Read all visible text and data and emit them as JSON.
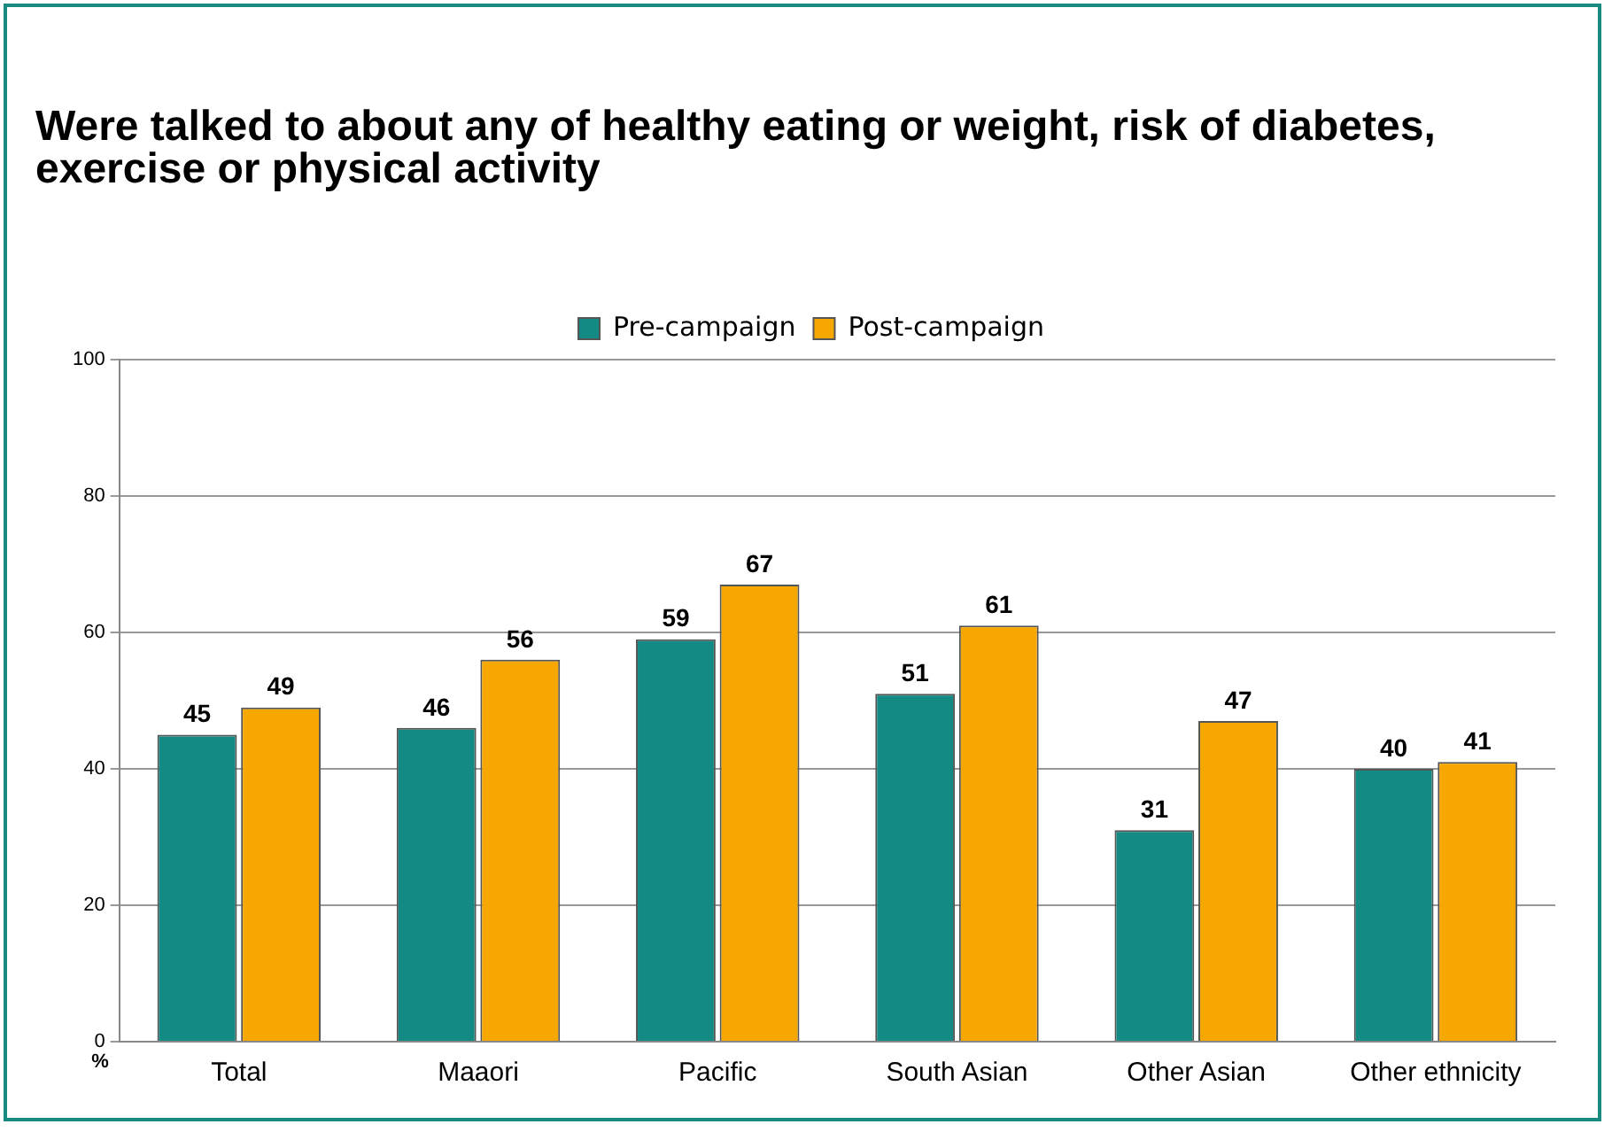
{
  "chart_data": {
    "type": "bar",
    "title": "Were talked to about any of healthy eating or weight, risk of diabetes, exercise or physical activity",
    "ylabel": "%",
    "categories": [
      "Total",
      "Maaori",
      "Pacific",
      "South Asian",
      "Other Asian",
      "Other ethnicity"
    ],
    "series": [
      {
        "name": "Pre-campaign",
        "color": "#138a84",
        "values": [
          45,
          46,
          59,
          51,
          31,
          40
        ]
      },
      {
        "name": "Post-campaign",
        "color": "#f7a800",
        "values": [
          49,
          56,
          67,
          61,
          47,
          41
        ]
      }
    ],
    "ylim": [
      0,
      100
    ],
    "yticks": [
      0,
      20,
      40,
      60,
      80,
      100
    ],
    "grid": "y",
    "legend": "top",
    "data_labels": true
  }
}
